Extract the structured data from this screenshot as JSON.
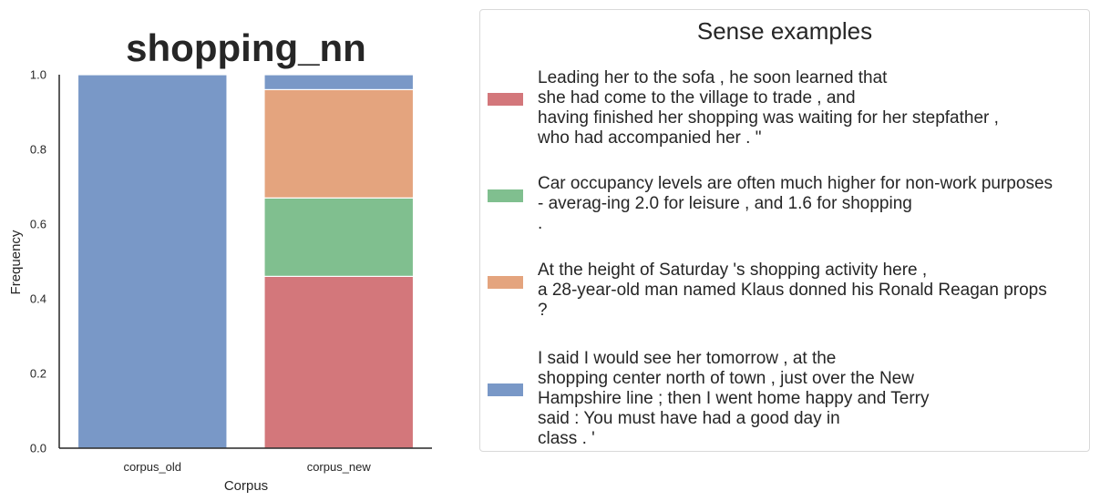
{
  "chart_data": {
    "type": "bar",
    "stacked": true,
    "title": "shopping_nn",
    "xlabel": "Corpus",
    "ylabel": "Frequency",
    "ylim": [
      0,
      1
    ],
    "yticks": [
      "0.0",
      "0.2",
      "0.4",
      "0.6",
      "0.8",
      "1.0"
    ],
    "categories": [
      "corpus_old",
      "corpus_new"
    ],
    "series": [
      {
        "color": "#d3777b",
        "values": [
          0.0,
          0.46
        ]
      },
      {
        "color": "#80bf8f",
        "values": [
          0.0,
          0.21
        ]
      },
      {
        "color": "#e4a47e",
        "values": [
          0.0,
          0.29
        ]
      },
      {
        "color": "#7998c7",
        "values": [
          1.0,
          0.04
        ]
      }
    ],
    "grid": false,
    "legend_position": "right"
  },
  "legend": {
    "title": "Sense examples",
    "entries": [
      {
        "color": "#d3777b",
        "text": "Leading her to the sofa , he soon learned that\nshe had come to the village to trade , and\nhaving finished her shopping was waiting for her stepfather ,\nwho had accompanied her . \""
      },
      {
        "color": "#80bf8f",
        "text": "Car occupancy levels are often much higher for non-work purposes\n- averag-ing 2.0 for leisure , and 1.6 for shopping\n."
      },
      {
        "color": "#e4a47e",
        "text": "At the height of Saturday 's shopping activity here ,\na 28-year-old man named Klaus donned his Ronald Reagan props\n?"
      },
      {
        "color": "#7998c7",
        "text": "I said I would see her tomorrow , at the\nshopping center north of town , just over the New\nHampshire line ; then I went home happy and Terry\nsaid : You must have had a good day in\nclass . '"
      }
    ]
  }
}
